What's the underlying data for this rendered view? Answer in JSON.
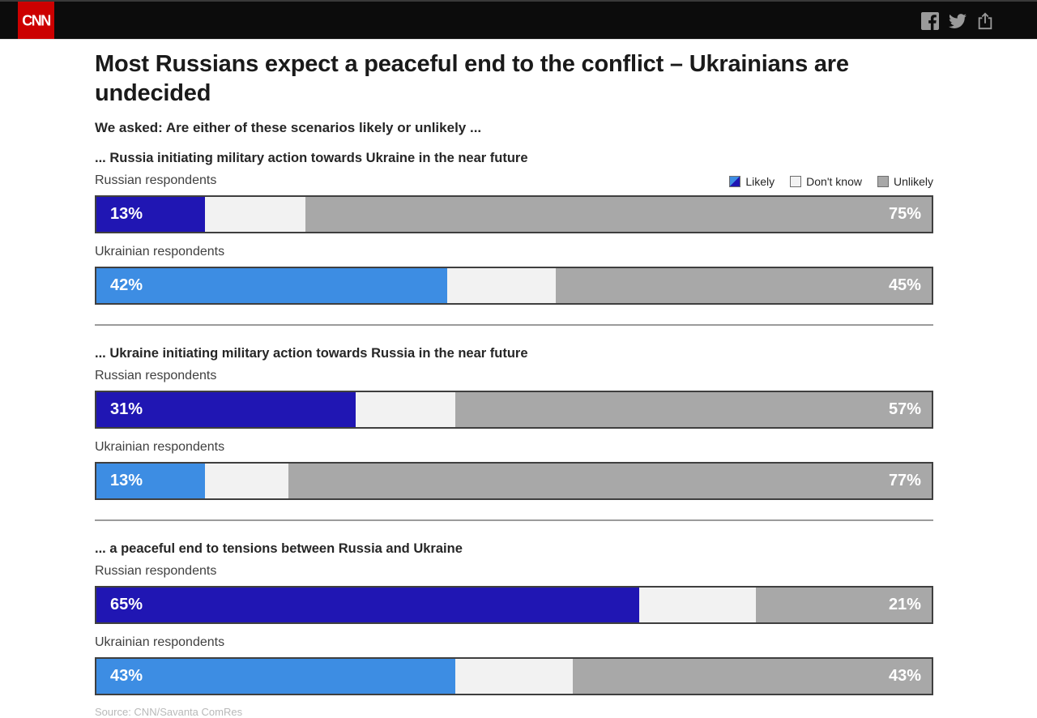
{
  "header": {
    "brand": "CNN",
    "social_icons": [
      "facebook-icon",
      "twitter-icon",
      "share-icon"
    ]
  },
  "title": "Most Russians expect a peaceful end to the conflict – Ukrainians are undecided",
  "subtitle": "We asked: Are either of these scenarios likely or unlikely ...",
  "legend": {
    "items": [
      {
        "key": "likely",
        "label": "Likely"
      },
      {
        "key": "dont_know",
        "label": "Don't know"
      },
      {
        "key": "unlikely",
        "label": "Unlikely"
      }
    ]
  },
  "colors": {
    "likely_russian": "#2016b3",
    "likely_ukrainian": "#3d8de3",
    "dont_know": "#f2f2f2",
    "unlikely": "#a8a8a8",
    "bar_border": "#3f3f3f",
    "cnn_red": "#cc0000",
    "header_black": "#0c0c0c"
  },
  "chart_data": {
    "type": "bar",
    "orientation": "horizontal-stacked",
    "unit": "%",
    "legend_position": "top-right",
    "series_labels": [
      "Likely",
      "Don't know",
      "Unlikely"
    ],
    "value_range": [
      0,
      100
    ],
    "sections": [
      {
        "question": "... Russia initiating military action towards Ukraine in the near future",
        "rows": [
          {
            "group": "Russian respondents",
            "palette": "russian",
            "likely": 13,
            "dont_know": 12,
            "unlikely": 75
          },
          {
            "group": "Ukrainian respondents",
            "palette": "ukrainian",
            "likely": 42,
            "dont_know": 13,
            "unlikely": 45
          }
        ]
      },
      {
        "question": "... Ukraine initiating military action towards Russia in the near future",
        "rows": [
          {
            "group": "Russian respondents",
            "palette": "russian",
            "likely": 31,
            "dont_know": 12,
            "unlikely": 57
          },
          {
            "group": "Ukrainian respondents",
            "palette": "ukrainian",
            "likely": 13,
            "dont_know": 10,
            "unlikely": 77
          }
        ]
      },
      {
        "question": "... a peaceful end to tensions between Russia and Ukraine",
        "rows": [
          {
            "group": "Russian respondents",
            "palette": "russian",
            "likely": 65,
            "dont_know": 14,
            "unlikely": 21
          },
          {
            "group": "Ukrainian respondents",
            "palette": "ukrainian",
            "likely": 43,
            "dont_know": 14,
            "unlikely": 43
          }
        ]
      }
    ]
  },
  "source": "Source: CNN/Savanta ComRes"
}
